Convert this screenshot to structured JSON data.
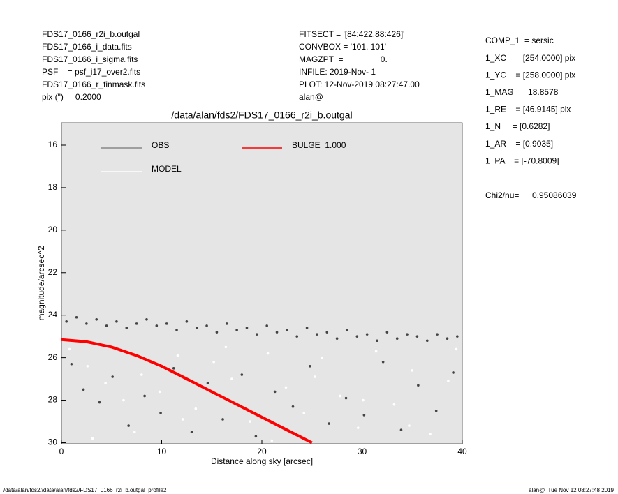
{
  "header": {
    "left": [
      "FDS17_0166_r2i_b.outgal",
      "FDS17_0166_i_data.fits",
      "FDS17_0166_i_sigma.fits",
      "PSF    = psf_i17_over2.fits",
      "FDS17_0166_r_finmask.fits",
      "pix (\") =  0.2000"
    ],
    "middle": [
      "FITSECT = '[84:422,88:426]'",
      "CONVBOX = '101, 101'",
      "MAGZPT  =                0.",
      "INFILE: 2019-Nov- 1",
      "PLOT: 12-Nov-2019 08:27:47.00",
      "alan@"
    ],
    "right": [
      "COMP_1  = sersic",
      "1_XC    = [254.0000] pix",
      "1_YC    = [258.0000] pix",
      "1_MAG   = 18.8578",
      "1_RE    = [46.9145] pix",
      "1_N     = [0.6282]",
      "1_AR    = [0.9035]",
      "1_PA    = [-70.8009]"
    ],
    "chi2_label": "Chi2/nu=",
    "chi2_value": "0.95086039"
  },
  "footer": {
    "left": "/data/alan/fds2//data/alan/fds2/FDS17_0166_r2i_b.outgal_profile2",
    "right": "alan@  Tue Nov 12 08:27:48 2019"
  },
  "chart_data": {
    "type": "scatter",
    "title": "/data/alan/fds2/FDS17_0166_r2i_b.outgal",
    "x_label": "Distance along sky [arcsec]",
    "y_label": "magnitude/arcsec^2",
    "xlim": [
      0,
      40
    ],
    "xticks": [
      0,
      10,
      20,
      30,
      40
    ],
    "ylim": [
      30.05,
      14.95
    ],
    "yticks": [
      16,
      18,
      20,
      22,
      24,
      26,
      28,
      30
    ],
    "background": "#e5e5e5",
    "series": [
      {
        "name": "OBS",
        "color": "#444444",
        "x": [
          0.5,
          1.5,
          2.5,
          3.5,
          4.5,
          5.5,
          6.5,
          7.5,
          8.5,
          9.5,
          10.5,
          11.5,
          12.5,
          13.5,
          14.5,
          15.5,
          16.5,
          17.5,
          18.5,
          19.5,
          20.5,
          21.5,
          22.5,
          23.5,
          24.5,
          25.5,
          26.5,
          27.5,
          28.5,
          29.5,
          30.5,
          31.5,
          32.5,
          33.5,
          34.5,
          35.5,
          36.5,
          37.5,
          38.5,
          39.5,
          1.0,
          2.2,
          3.8,
          5.1,
          6.7,
          8.3,
          9.9,
          11.2,
          13.0,
          14.6,
          16.1,
          18.0,
          19.4,
          21.3,
          23.1,
          24.8,
          26.7,
          28.4,
          30.2,
          32.1,
          33.9,
          35.6,
          37.4,
          39.1
        ],
        "values": [
          24.3,
          24.1,
          24.4,
          24.2,
          24.5,
          24.3,
          24.6,
          24.4,
          24.2,
          24.5,
          24.4,
          24.7,
          24.3,
          24.6,
          24.5,
          24.8,
          24.4,
          24.7,
          24.6,
          24.9,
          24.5,
          24.8,
          24.7,
          25.0,
          24.6,
          24.9,
          24.8,
          25.1,
          24.7,
          25.0,
          24.9,
          25.2,
          24.8,
          25.1,
          24.9,
          25.0,
          25.2,
          24.9,
          25.1,
          25.0,
          26.3,
          27.5,
          28.1,
          26.9,
          29.2,
          27.8,
          28.6,
          26.5,
          29.5,
          27.2,
          28.9,
          26.8,
          29.7,
          27.6,
          28.3,
          26.4,
          29.1,
          27.9,
          28.7,
          26.2,
          29.4,
          27.3,
          28.5,
          26.7
        ]
      },
      {
        "name": "MODEL",
        "color": "#ffffff",
        "x": [
          0.8,
          2.6,
          4.4,
          6.2,
          8.0,
          9.8,
          11.6,
          13.4,
          15.2,
          17.0,
          18.8,
          20.6,
          22.4,
          24.2,
          26.0,
          27.8,
          29.6,
          31.4,
          33.2,
          35.0,
          36.8,
          38.6,
          3.1,
          7.3,
          12.1,
          16.4,
          21.0,
          25.3,
          30.1,
          34.7,
          39.4
        ],
        "values": [
          25.6,
          26.4,
          27.2,
          28.0,
          26.8,
          27.6,
          25.9,
          28.4,
          26.2,
          27.0,
          29.0,
          25.8,
          27.4,
          28.6,
          26.0,
          27.8,
          29.3,
          25.7,
          28.2,
          26.6,
          29.6,
          27.1,
          29.8,
          29.5,
          28.9,
          25.5,
          29.9,
          26.9,
          28.0,
          29.2,
          25.6
        ]
      },
      {
        "name": "BULGE  1.000",
        "color": "#ff0000",
        "line": true,
        "x": [
          0,
          2.5,
          5,
          7.5,
          10,
          12.5,
          15,
          17.5,
          20,
          22.5,
          25
        ],
        "values": [
          25.15,
          25.25,
          25.5,
          25.9,
          26.4,
          27.0,
          27.6,
          28.2,
          28.8,
          29.4,
          30.0
        ]
      }
    ]
  }
}
